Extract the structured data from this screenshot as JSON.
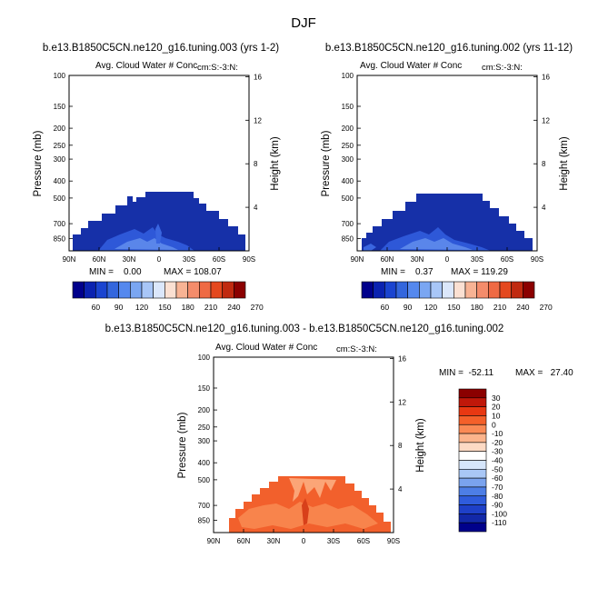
{
  "page": {
    "title": "DJF"
  },
  "chart_data": [
    {
      "id": "panel1",
      "type": "contour",
      "title": "b.e13.B1850C5CN.ne120_g16.tuning.003 (yrs 1-2)",
      "subtitle_left": "Avg. Cloud Water # Conc",
      "subtitle_right": "cm:S:-3:N:",
      "xlabel": "",
      "ylabel": "Pressure (mb)",
      "y2label": "Height (km)",
      "x_ticks": [
        "90N",
        "60N",
        "30N",
        "0",
        "30S",
        "60S",
        "90S"
      ],
      "y_ticks": [
        "100",
        "150",
        "200",
        "250",
        "300",
        "400",
        "500",
        "700",
        "850"
      ],
      "y2_ticks": [
        "4",
        "8",
        "12",
        "16"
      ],
      "min_label": "MIN =    0.00",
      "max_label": "MAX = 108.07",
      "colorbar_labels": [
        "60",
        "90",
        "120",
        "150",
        "180",
        "210",
        "240",
        "270"
      ]
    },
    {
      "id": "panel2",
      "type": "contour",
      "title": "b.e13.B1850C5CN.ne120_g16.tuning.002 (yrs 11-12)",
      "subtitle_left": "Avg. Cloud Water # Conc",
      "subtitle_right": "cm:S:-3:N:",
      "xlabel": "",
      "ylabel": "Pressure (mb)",
      "y2label": "Height (km)",
      "x_ticks": [
        "90N",
        "60N",
        "30N",
        "0",
        "30S",
        "60S",
        "90S"
      ],
      "y_ticks": [
        "100",
        "150",
        "200",
        "250",
        "300",
        "400",
        "500",
        "700",
        "850"
      ],
      "y2_ticks": [
        "4",
        "8",
        "12",
        "16"
      ],
      "min_label": "MIN =    0.37",
      "max_label": "MAX = 119.29",
      "colorbar_labels": [
        "60",
        "90",
        "120",
        "150",
        "180",
        "210",
        "240",
        "270"
      ]
    },
    {
      "id": "panel3",
      "type": "contour",
      "title": "b.e13.B1850C5CN.ne120_g16.tuning.003 - b.e13.B1850C5CN.ne120_g16.tuning.002",
      "subtitle_left": "Avg. Cloud Water # Conc",
      "subtitle_right": "cm:S:-3:N:",
      "xlabel": "",
      "ylabel": "Pressure (mb)",
      "y2label": "Height (km)",
      "x_ticks": [
        "90N",
        "60N",
        "30N",
        "0",
        "30S",
        "60S",
        "90S"
      ],
      "y_ticks": [
        "100",
        "150",
        "200",
        "250",
        "300",
        "400",
        "500",
        "700",
        "850"
      ],
      "y2_ticks": [
        "4",
        "8",
        "12",
        "16"
      ],
      "min_label": "MIN =  -52.11",
      "max_label": "MAX =   27.40",
      "colorbar_labels": [
        "30",
        "20",
        "10",
        "0",
        "-10",
        "-20",
        "-30",
        "-40",
        "-50",
        "-60",
        "-70",
        "-80",
        "-90",
        "-100",
        "-110"
      ]
    }
  ],
  "colors": {
    "bar_palette": [
      "#00008b",
      "#0a22b0",
      "#1a44d0",
      "#3366dd",
      "#5588ee",
      "#7aa6f2",
      "#a8c6f7",
      "#dbe7fb",
      "#fbe0d2",
      "#f8b394",
      "#f48c6b",
      "#ef6a44",
      "#e4481e",
      "#c02a10",
      "#8b0000"
    ],
    "diff_palette": [
      "#8b0000",
      "#c0180a",
      "#e83812",
      "#f4602a",
      "#fa8a55",
      "#fcb48c",
      "#fddac4",
      "#ffffff",
      "#d6e6fb",
      "#a9c7f6",
      "#7aa3ee",
      "#4d7ee6",
      "#2f5cdc",
      "#1e40c8",
      "#1228a8",
      "#00008b"
    ],
    "field_dark": "#1630a8",
    "field_mid": "#2e58d8",
    "field_light": "#5a86ea",
    "diff_field": "#f2602c",
    "diff_field_dark": "#d8401a"
  }
}
